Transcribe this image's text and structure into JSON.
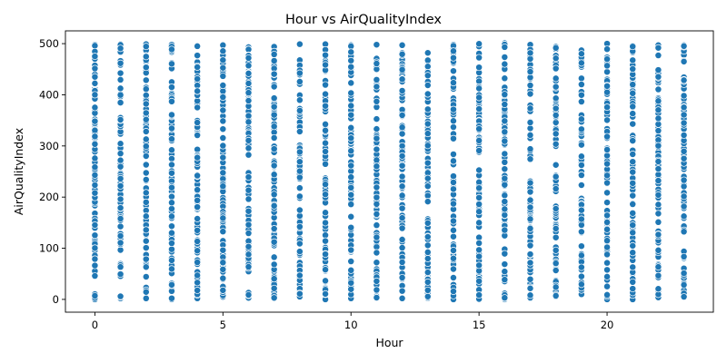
{
  "chart_data": {
    "type": "scatter",
    "title": "Hour vs AirQualityIndex",
    "xlabel": "Hour",
    "ylabel": "AirQualityIndex",
    "xlim": [
      -1.15,
      24.15
    ],
    "ylim": [
      -25,
      525
    ],
    "xticks": [
      0,
      5,
      10,
      15,
      20
    ],
    "yticks": [
      0,
      100,
      200,
      300,
      400,
      500
    ],
    "grid": false,
    "legend": "none",
    "marker_color": "#1f77b4",
    "series": [
      {
        "x_values": [
          0,
          1,
          2,
          3,
          4,
          5,
          6,
          7,
          8,
          9,
          10,
          11,
          12,
          13,
          14,
          15,
          16,
          17,
          18,
          19,
          20,
          21,
          22,
          23
        ],
        "y_min": [
          0,
          2,
          2,
          0,
          2,
          5,
          3,
          2,
          5,
          0,
          2,
          2,
          2,
          2,
          0,
          0,
          0,
          2,
          5,
          10,
          0,
          0,
          3,
          5
        ],
        "y_max": [
          498,
          499,
          499,
          498,
          495,
          497,
          494,
          494,
          499,
          499,
          497,
          498,
          497,
          482,
          498,
          500,
          501,
          498,
          494,
          487,
          500,
          496,
          497,
          498
        ],
        "points_per_hour": 90,
        "note": "dense vertical columns of points spanning roughly the full 0-500 range at every hour"
      }
    ]
  }
}
